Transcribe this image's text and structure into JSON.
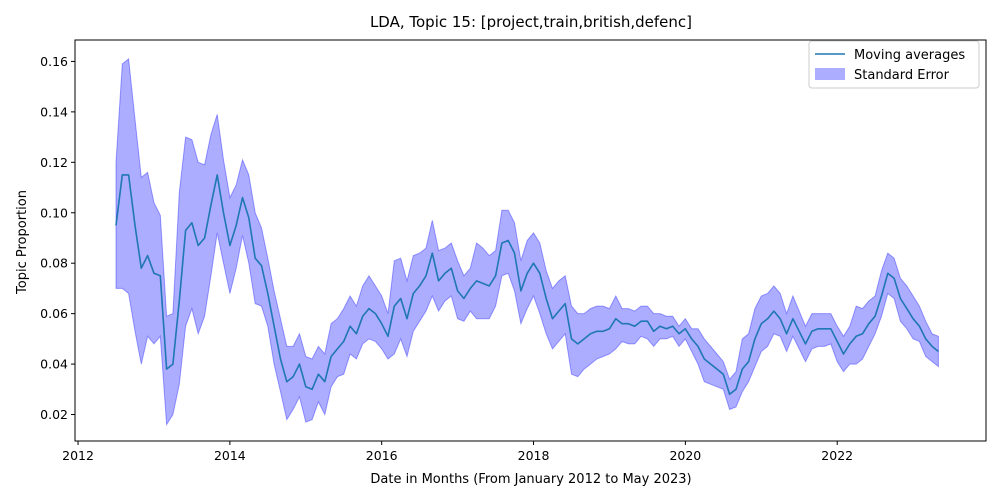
{
  "chart_data": {
    "type": "line",
    "title": "LDA, Topic 15: [project,train,british,defenc]",
    "xlabel": "Date in Months (From January 2012 to May 2023)",
    "ylabel": "Topic Proportion",
    "xlim": [
      2011.96,
      2023.96
    ],
    "ylim": [
      0.0095,
      0.1685
    ],
    "x_ticks": [
      2012,
      2014,
      2016,
      2018,
      2020,
      2022
    ],
    "x_tick_labels": [
      "2012",
      "2014",
      "2016",
      "2018",
      "2020",
      "2022"
    ],
    "y_ticks": [
      0.02,
      0.04,
      0.06,
      0.08,
      0.1,
      0.12,
      0.14,
      0.16
    ],
    "y_tick_labels": [
      "0.02",
      "0.04",
      "0.06",
      "0.08",
      "0.10",
      "0.12",
      "0.14",
      "0.16"
    ],
    "legend": {
      "position": "top-right",
      "entries": [
        "Moving averages",
        "Standard Error"
      ]
    },
    "colors": {
      "line": "#1f77b4",
      "band_fill": "#0000ff",
      "band_edge": "#0000ff"
    },
    "series": [
      {
        "name": "Moving averages",
        "x_start": 2012.5,
        "x_step": 0.08333,
        "values": [
          0.095,
          0.115,
          0.115,
          0.095,
          0.078,
          0.083,
          0.076,
          0.075,
          0.038,
          0.04,
          0.065,
          0.093,
          0.096,
          0.087,
          0.09,
          0.103,
          0.115,
          0.1,
          0.087,
          0.095,
          0.106,
          0.098,
          0.082,
          0.079,
          0.068,
          0.055,
          0.042,
          0.033,
          0.035,
          0.04,
          0.031,
          0.03,
          0.036,
          0.033,
          0.043,
          0.046,
          0.049,
          0.055,
          0.052,
          0.059,
          0.062,
          0.06,
          0.056,
          0.051,
          0.063,
          0.066,
          0.058,
          0.068,
          0.071,
          0.075,
          0.084,
          0.073,
          0.076,
          0.078,
          0.069,
          0.066,
          0.07,
          0.073,
          0.072,
          0.071,
          0.075,
          0.088,
          0.089,
          0.084,
          0.069,
          0.076,
          0.08,
          0.076,
          0.066,
          0.058,
          0.061,
          0.064,
          0.05,
          0.048,
          0.05,
          0.052,
          0.053,
          0.053,
          0.054,
          0.058,
          0.056,
          0.056,
          0.055,
          0.057,
          0.057,
          0.053,
          0.055,
          0.054,
          0.055,
          0.052,
          0.054,
          0.05,
          0.047,
          0.042,
          0.04,
          0.038,
          0.036,
          0.028,
          0.03,
          0.038,
          0.041,
          0.05,
          0.056,
          0.058,
          0.061,
          0.058,
          0.052,
          0.058,
          0.053,
          0.048,
          0.053,
          0.054,
          0.054,
          0.054,
          0.049,
          0.044,
          0.048,
          0.051,
          0.052,
          0.056,
          0.059,
          0.067,
          0.076,
          0.074,
          0.066,
          0.062,
          0.058,
          0.055,
          0.05,
          0.047,
          0.045
        ]
      }
    ],
    "standard_error": {
      "lower": [
        0.07,
        0.07,
        0.068,
        0.053,
        0.04,
        0.051,
        0.048,
        0.051,
        0.016,
        0.02,
        0.032,
        0.055,
        0.062,
        0.052,
        0.059,
        0.075,
        0.092,
        0.08,
        0.068,
        0.078,
        0.091,
        0.08,
        0.064,
        0.063,
        0.055,
        0.04,
        0.029,
        0.018,
        0.022,
        0.027,
        0.017,
        0.018,
        0.025,
        0.02,
        0.031,
        0.035,
        0.036,
        0.044,
        0.042,
        0.048,
        0.05,
        0.049,
        0.046,
        0.042,
        0.044,
        0.05,
        0.043,
        0.053,
        0.057,
        0.061,
        0.067,
        0.061,
        0.065,
        0.067,
        0.058,
        0.057,
        0.061,
        0.058,
        0.058,
        0.058,
        0.063,
        0.075,
        0.076,
        0.069,
        0.056,
        0.062,
        0.067,
        0.06,
        0.052,
        0.046,
        0.049,
        0.052,
        0.036,
        0.035,
        0.038,
        0.04,
        0.042,
        0.043,
        0.044,
        0.046,
        0.049,
        0.048,
        0.048,
        0.051,
        0.05,
        0.047,
        0.05,
        0.05,
        0.051,
        0.047,
        0.05,
        0.045,
        0.04,
        0.033,
        0.032,
        0.031,
        0.03,
        0.022,
        0.023,
        0.029,
        0.033,
        0.039,
        0.045,
        0.047,
        0.052,
        0.051,
        0.045,
        0.051,
        0.046,
        0.041,
        0.046,
        0.047,
        0.047,
        0.048,
        0.041,
        0.037,
        0.04,
        0.04,
        0.042,
        0.047,
        0.052,
        0.059,
        0.068,
        0.066,
        0.057,
        0.054,
        0.05,
        0.049,
        0.043,
        0.041,
        0.039
      ],
      "upper": [
        0.12,
        0.159,
        0.161,
        0.137,
        0.114,
        0.116,
        0.104,
        0.099,
        0.059,
        0.06,
        0.108,
        0.13,
        0.129,
        0.12,
        0.119,
        0.131,
        0.139,
        0.121,
        0.106,
        0.111,
        0.121,
        0.115,
        0.1,
        0.094,
        0.082,
        0.069,
        0.058,
        0.047,
        0.047,
        0.052,
        0.043,
        0.042,
        0.047,
        0.044,
        0.056,
        0.058,
        0.062,
        0.067,
        0.063,
        0.071,
        0.075,
        0.071,
        0.067,
        0.06,
        0.081,
        0.082,
        0.073,
        0.083,
        0.084,
        0.086,
        0.097,
        0.085,
        0.086,
        0.088,
        0.081,
        0.075,
        0.078,
        0.088,
        0.086,
        0.083,
        0.085,
        0.101,
        0.101,
        0.096,
        0.081,
        0.089,
        0.092,
        0.088,
        0.077,
        0.07,
        0.073,
        0.075,
        0.063,
        0.06,
        0.06,
        0.062,
        0.063,
        0.063,
        0.062,
        0.067,
        0.062,
        0.062,
        0.061,
        0.063,
        0.063,
        0.06,
        0.06,
        0.059,
        0.059,
        0.055,
        0.058,
        0.054,
        0.054,
        0.05,
        0.047,
        0.044,
        0.041,
        0.034,
        0.037,
        0.05,
        0.052,
        0.062,
        0.067,
        0.068,
        0.071,
        0.068,
        0.06,
        0.067,
        0.061,
        0.055,
        0.06,
        0.06,
        0.06,
        0.06,
        0.055,
        0.051,
        0.055,
        0.063,
        0.062,
        0.065,
        0.067,
        0.077,
        0.084,
        0.082,
        0.074,
        0.071,
        0.067,
        0.063,
        0.057,
        0.052,
        0.051
      ]
    }
  }
}
